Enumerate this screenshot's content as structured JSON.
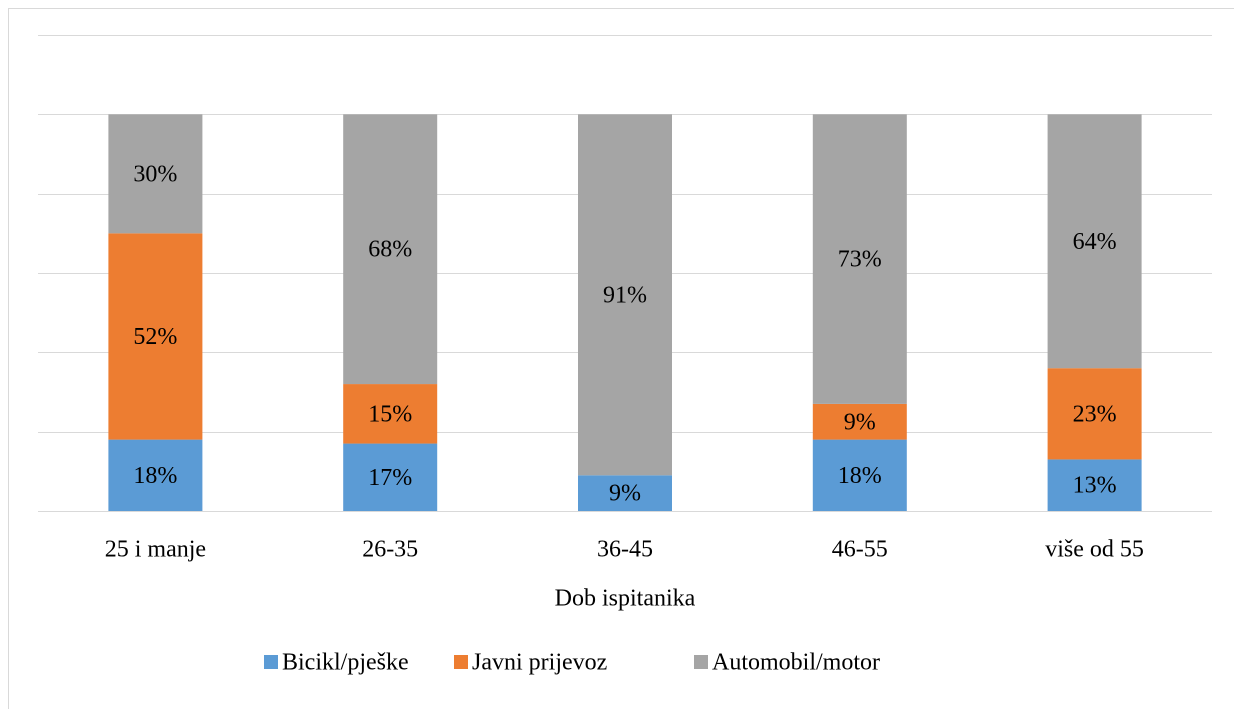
{
  "chart_data": {
    "type": "stacked_bar",
    "categories": [
      "25 i manje",
      "26-35",
      "36-45",
      "46-55",
      "više od 55"
    ],
    "series": [
      {
        "name": "Bicikl/pješke",
        "color": "#5b9bd5",
        "values": [
          18,
          17,
          9,
          18,
          13
        ],
        "value_labels": [
          "18%",
          "17%",
          "9%",
          "18%",
          "13%"
        ]
      },
      {
        "name": "Javni prijevoz",
        "color": "#ed7d31",
        "values": [
          52,
          15,
          0,
          9,
          23
        ],
        "value_labels": [
          "52%",
          "15%",
          null,
          "9%",
          "23%"
        ]
      },
      {
        "name": "Automobil/motor",
        "color": "#a5a5a5",
        "values": [
          30,
          68,
          91,
          73,
          64
        ],
        "value_labels": [
          "30%",
          "68%",
          "91%",
          "73%",
          "64%"
        ]
      }
    ],
    "xlabel": "Dob ispitanika",
    "ylim": [
      0,
      120
    ],
    "yticks": [
      0,
      20,
      40,
      60,
      80,
      100,
      120
    ],
    "grid": true,
    "legend": "bottom"
  }
}
